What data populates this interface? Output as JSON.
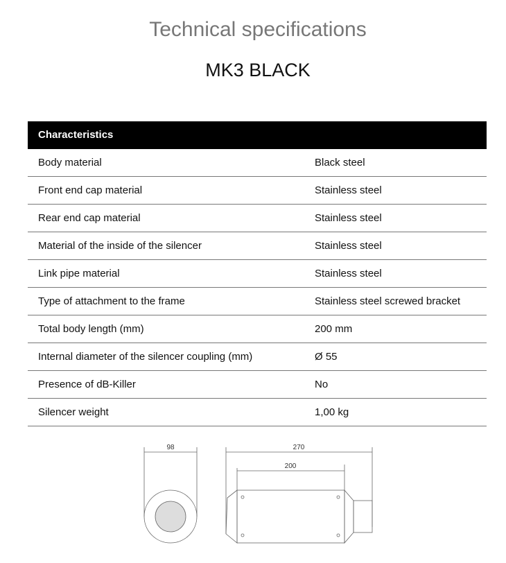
{
  "title": "Technical specifications",
  "model": "MK3 BLACK",
  "table": {
    "header": "Characteristics",
    "rows": [
      {
        "label": "Body material",
        "value": "Black steel"
      },
      {
        "label": "Front end cap material",
        "value": "Stainless steel"
      },
      {
        "label": "Rear end cap material",
        "value": "Stainless steel"
      },
      {
        "label": "Material of the inside of the silencer",
        "value": "Stainless steel"
      },
      {
        "label": "Link pipe material",
        "value": "Stainless steel"
      },
      {
        "label": "Type of attachment to the frame",
        "value": "Stainless steel screwed bracket"
      },
      {
        "label": "Total body length (mm)",
        "value": "200 mm"
      },
      {
        "label": "Internal diameter of the silencer coupling (mm)",
        "value": "Ø 55"
      },
      {
        "label": "Presence of dB-Killer",
        "value": "No"
      },
      {
        "label": "Silencer weight",
        "value": "1,00 kg"
      }
    ]
  },
  "drawing": {
    "diameter": "98",
    "total_length": "270",
    "body_length": "200"
  }
}
